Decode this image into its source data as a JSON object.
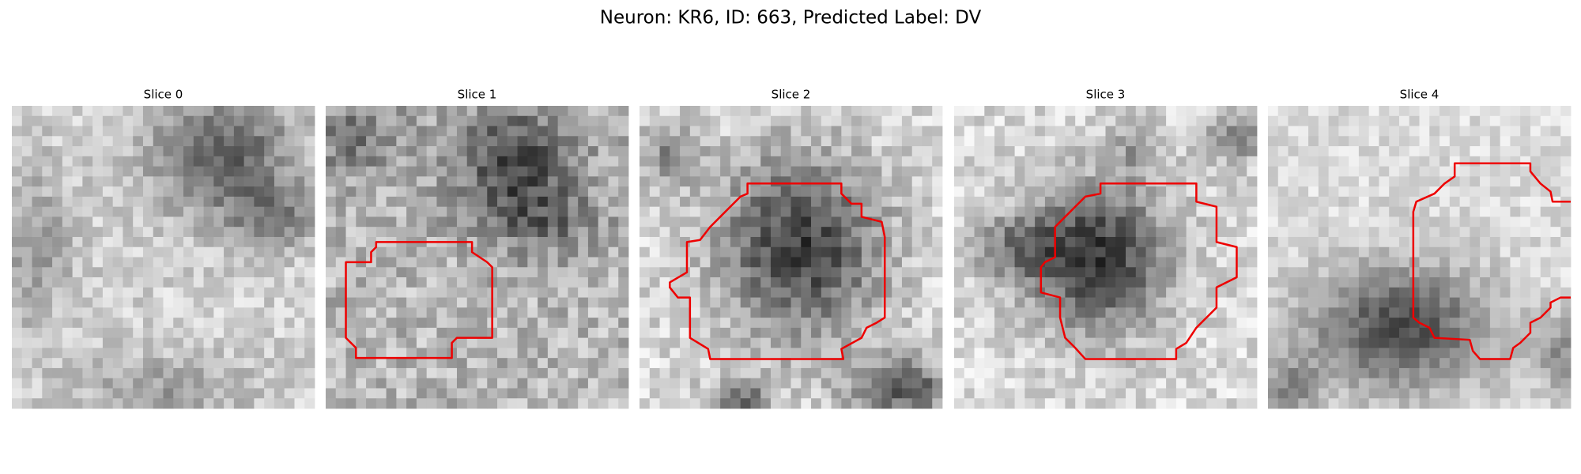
{
  "title": "Neuron: KR6, ID: 663, Predicted Label: DV",
  "panels": [
    {
      "title": "Slice 0"
    },
    {
      "title": "Slice 1"
    },
    {
      "title": "Slice 2"
    },
    {
      "title": "Slice 3"
    },
    {
      "title": "Slice 4"
    }
  ]
}
